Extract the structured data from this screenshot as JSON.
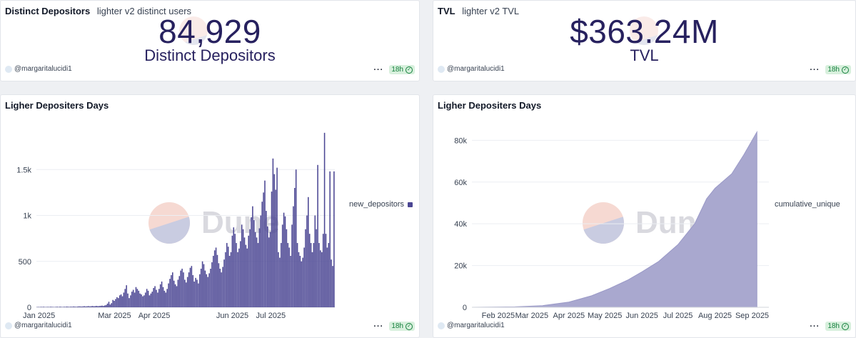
{
  "colors": {
    "accent": "#27215f",
    "series": "#4b4693",
    "area": "#a9a8cf",
    "badge_bg": "#d8f0dd",
    "badge_fg": "#15803d"
  },
  "watermark": "Dune",
  "top_left": {
    "title": "Distinct Depositors",
    "subtitle": "lighter v2 distinct users",
    "value": "84,929",
    "label": "Distinct Depositors",
    "author": "@margaritalucidi1",
    "refresh": "18h"
  },
  "top_right": {
    "title": "TVL",
    "subtitle": "lighter v2 TVL",
    "value": "$363.24M",
    "label": "TVL",
    "author": "@margaritalucidi1",
    "refresh": "18h"
  },
  "bottom_left": {
    "author": "@margaritalucidi1",
    "refresh": "18h"
  },
  "bottom_right": {
    "author": "@margaritalucidi1",
    "refresh": "18h"
  },
  "chart_data": [
    {
      "type": "bar",
      "title": "Ligher Depositers Days",
      "series_name": "new_depositors",
      "x_range": [
        "2024-12-30",
        "2025-08-20"
      ],
      "ylim": [
        0,
        2000
      ],
      "y_ticks": [
        {
          "v": 0,
          "label": "0"
        },
        {
          "v": 500,
          "label": "500"
        },
        {
          "v": 1000,
          "label": "1k"
        },
        {
          "v": 1500,
          "label": "1.5k"
        }
      ],
      "x_ticks": [
        {
          "date": "2025-01-01",
          "label": "Jan 2025"
        },
        {
          "date": "2025-03-01",
          "label": "Mar 2025"
        },
        {
          "date": "2025-04-01",
          "label": "Apr 2025"
        },
        {
          "date": "2025-06-01",
          "label": "Jun 2025"
        },
        {
          "date": "2025-07-01",
          "label": "Jul 2025"
        }
      ],
      "values": [
        3,
        4,
        3,
        5,
        4,
        6,
        3,
        4,
        5,
        4,
        6,
        5,
        4,
        3,
        5,
        6,
        4,
        7,
        5,
        4,
        6,
        5,
        8,
        6,
        5,
        7,
        6,
        9,
        7,
        6,
        8,
        10,
        9,
        8,
        10,
        12,
        9,
        11,
        13,
        10,
        12,
        14,
        11,
        13,
        15,
        12,
        14,
        16,
        18,
        15,
        20,
        25,
        40,
        60,
        30,
        45,
        80,
        70,
        90,
        110,
        100,
        130,
        140,
        120,
        160,
        200,
        240,
        150,
        100,
        130,
        170,
        190,
        160,
        220,
        200,
        180,
        150,
        140,
        120,
        130,
        160,
        200,
        180,
        130,
        150,
        170,
        210,
        230,
        190,
        160,
        200,
        250,
        280,
        220,
        180,
        160,
        200,
        260,
        310,
        350,
        380,
        290,
        250,
        230,
        300,
        340,
        400,
        420,
        380,
        300,
        270,
        330,
        380,
        430,
        450,
        350,
        280,
        320,
        300,
        260,
        360,
        420,
        500,
        470,
        400,
        360,
        330,
        370,
        420,
        490,
        560,
        620,
        650,
        570,
        480,
        420,
        380,
        440,
        520,
        600,
        700,
        660,
        560,
        600,
        780,
        870,
        800,
        700,
        600,
        640,
        720,
        900,
        850,
        760,
        680,
        640,
        780,
        850,
        980,
        1100,
        950,
        820,
        760,
        700,
        860,
        1000,
        1150,
        1250,
        1380,
        1050,
        880,
        760,
        820,
        1260,
        1620,
        1450,
        1280,
        1520,
        600,
        540,
        700,
        900,
        1030,
        990,
        850,
        700,
        650,
        560,
        900,
        1100,
        1300,
        1500,
        700,
        600,
        560,
        500,
        540,
        650,
        850,
        1000,
        1200,
        800,
        700,
        600,
        700,
        1000,
        850,
        1550,
        700,
        620,
        600,
        800,
        1900,
        800,
        650,
        700,
        1480,
        520,
        450,
        1480
      ],
      "xlabel": "",
      "ylabel": ""
    },
    {
      "type": "area",
      "title": "Ligher Depositers Days",
      "series_name": "cumulative_unique",
      "ylim": [
        0,
        88000
      ],
      "y_ticks": [
        {
          "v": 0,
          "label": "0"
        },
        {
          "v": 20000,
          "label": "20k"
        },
        {
          "v": 40000,
          "label": "40k"
        },
        {
          "v": 60000,
          "label": "60k"
        },
        {
          "v": 80000,
          "label": "80k"
        }
      ],
      "x_ticks": [
        {
          "date": "2025-02-01",
          "label": "Feb 2025"
        },
        {
          "date": "2025-03-01",
          "label": "Mar 2025"
        },
        {
          "date": "2025-04-01",
          "label": "Apr 2025"
        },
        {
          "date": "2025-05-01",
          "label": "May 2025"
        },
        {
          "date": "2025-06-01",
          "label": "Jun 2025"
        },
        {
          "date": "2025-07-01",
          "label": "Jul 2025"
        },
        {
          "date": "2025-08-01",
          "label": "Aug 2025"
        },
        {
          "date": "2025-09-01",
          "label": "Sep 2025"
        }
      ],
      "points": [
        {
          "date": "2025-01-10",
          "value": 0
        },
        {
          "date": "2025-02-15",
          "value": 200
        },
        {
          "date": "2025-03-10",
          "value": 800
        },
        {
          "date": "2025-04-01",
          "value": 2500
        },
        {
          "date": "2025-04-20",
          "value": 5500
        },
        {
          "date": "2025-05-05",
          "value": 9000
        },
        {
          "date": "2025-05-20",
          "value": 13000
        },
        {
          "date": "2025-06-01",
          "value": 17000
        },
        {
          "date": "2025-06-15",
          "value": 22000
        },
        {
          "date": "2025-07-01",
          "value": 30000
        },
        {
          "date": "2025-07-15",
          "value": 40000
        },
        {
          "date": "2025-07-25",
          "value": 52000
        },
        {
          "date": "2025-08-01",
          "value": 57000
        },
        {
          "date": "2025-08-15",
          "value": 64000
        },
        {
          "date": "2025-08-25",
          "value": 73000
        },
        {
          "date": "2025-09-05",
          "value": 84000
        }
      ],
      "xlabel": "",
      "ylabel": ""
    }
  ]
}
